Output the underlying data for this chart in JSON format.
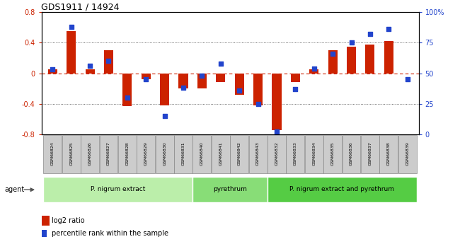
{
  "title": "GDS1911 / 14924",
  "samples": [
    "GSM66824",
    "GSM66825",
    "GSM66826",
    "GSM66827",
    "GSM66828",
    "GSM66829",
    "GSM66830",
    "GSM66831",
    "GSM66840",
    "GSM66841",
    "GSM66842",
    "GSM66843",
    "GSM66832",
    "GSM66833",
    "GSM66834",
    "GSM66835",
    "GSM66836",
    "GSM66837",
    "GSM66838",
    "GSM66839"
  ],
  "log2_ratio": [
    0.05,
    0.55,
    0.05,
    0.3,
    -0.43,
    -0.08,
    -0.42,
    -0.2,
    -0.2,
    -0.12,
    -0.28,
    -0.42,
    -0.75,
    -0.12,
    0.05,
    0.3,
    0.35,
    0.38,
    0.42,
    0.0
  ],
  "percentile": [
    53,
    88,
    56,
    60,
    30,
    45,
    15,
    38,
    48,
    58,
    36,
    25,
    2,
    37,
    54,
    66,
    75,
    82,
    86,
    45
  ],
  "groups": [
    {
      "label": "P. nigrum extract",
      "start": 0,
      "end": 7,
      "color": "#bbeeaa"
    },
    {
      "label": "pyrethrum",
      "start": 8,
      "end": 11,
      "color": "#88dd77"
    },
    {
      "label": "P. nigrum extract and pyrethrum",
      "start": 12,
      "end": 19,
      "color": "#55cc44"
    }
  ],
  "ylim_left": [
    -0.8,
    0.8
  ],
  "ylim_right": [
    0,
    100
  ],
  "yticks_left": [
    -0.8,
    -0.4,
    0.0,
    0.4,
    0.8
  ],
  "ytick_labels_left": [
    "-0.8",
    "-0.4",
    "0",
    "0.4",
    "0.8"
  ],
  "yticks_right": [
    0,
    25,
    50,
    75,
    100
  ],
  "ytick_labels_right": [
    "0",
    "25",
    "50",
    "75",
    "100%"
  ],
  "bar_color": "#cc2200",
  "dot_color": "#2244cc",
  "zero_line_color": "#cc2200",
  "grid_dotted_color": "#444444",
  "sample_box_color": "#cccccc",
  "sample_box_edge": "#888888",
  "legend_bar": "log2 ratio",
  "legend_dot": "percentile rank within the sample",
  "agent_label": "agent"
}
